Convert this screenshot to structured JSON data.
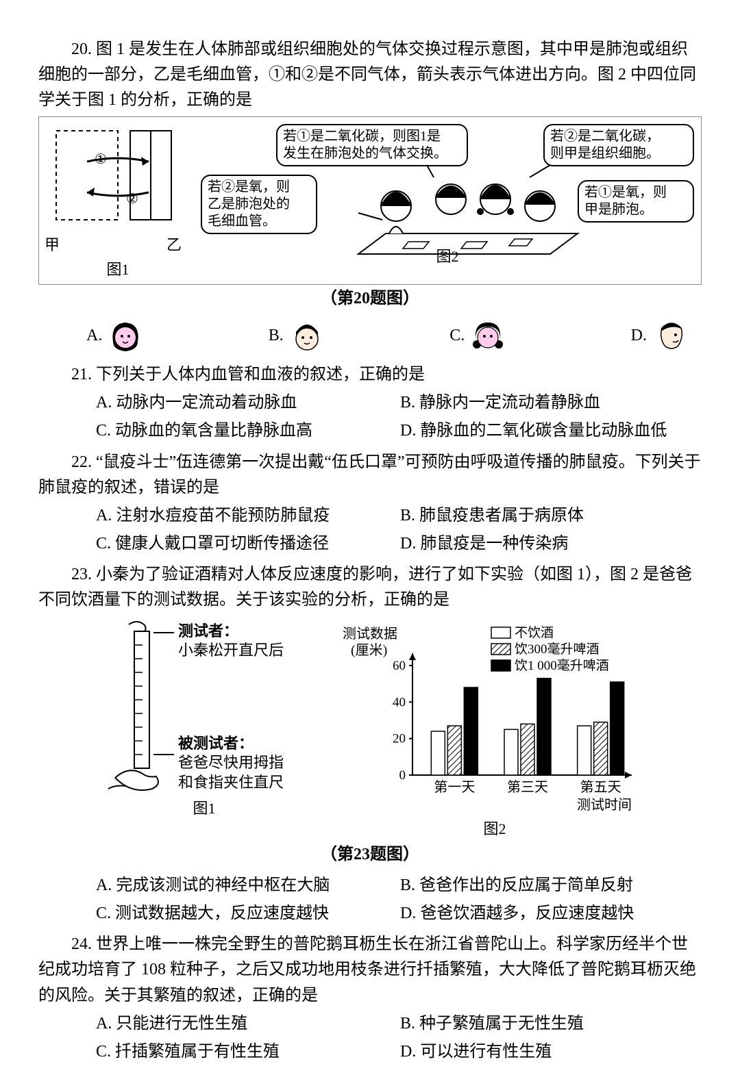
{
  "q20": {
    "num": "20.",
    "stem": "图 1 是发生在人体肺部或组织细胞处的气体交换过程示意图，其中甲是肺泡或组织细胞的一部分，乙是毛细血管，①和②是不同气体，箭头表示气体进出方向。图 2 中四位同学关于图 1 的分析，正确的是",
    "fig1": {
      "label_left": "甲",
      "label_right": "乙",
      "g1": "①",
      "g2": "②",
      "caption": "图1"
    },
    "bubbles": {
      "b1": "若①是二氧化碳，则图1是\n发生在肺泡处的气体交换。",
      "b2": "若②是二氧化碳，\n则甲是组织细胞。",
      "bL": "若②是氧，则\n乙是肺泡处的\n毛细血管。",
      "bR": "若①是氧，则\n甲是肺泡。"
    },
    "fig2_caption": "图2",
    "central_caption": "（第20题图）",
    "opts": {
      "A": "A.",
      "B": "B.",
      "C": "C.",
      "D": "D."
    }
  },
  "q21": {
    "num": "21.",
    "stem": "下列关于人体内血管和血液的叙述，正确的是",
    "opts": {
      "A": "A. 动脉内一定流动着动脉血",
      "B": "B. 静脉内一定流动着静脉血",
      "C": "C. 动脉血的氧含量比静脉血高",
      "D": "D. 静脉血的二氧化碳含量比动脉血低"
    }
  },
  "q22": {
    "num": "22.",
    "stem": "“鼠疫斗士”伍连德第一次提出戴“伍氏口罩”可预防由呼吸道传播的肺鼠疫。下列关于肺鼠疫的叙述，错误的是",
    "opts": {
      "A": "A. 注射水痘疫苗不能预防肺鼠疫",
      "B": "B. 肺鼠疫患者属于病原体",
      "C": "C. 健康人戴口罩可切断传播途径",
      "D": "D. 肺鼠疫是一种传染病"
    }
  },
  "q23": {
    "num": "23.",
    "stem": "小秦为了验证酒精对人体反应速度的影响，进行了如下实验（如图 1），图 2 是爸爸不同饮酒量下的测试数据。关于该实验的分析，正确的是",
    "fig1": {
      "tester_title": "测试者：",
      "tester_line": "小秦松开直尺后",
      "subject_title": "被测试者：",
      "subject_line1": "爸爸尽快用拇指",
      "subject_line2": "和食指夹住直尺",
      "caption": "图1"
    },
    "chart": {
      "type": "bar",
      "y_label": "测试数据\n(厘米)",
      "legend": [
        "不饮酒",
        "饮300毫升啤酒",
        "饮1 000毫升啤酒"
      ],
      "legend_fill": [
        "#ffffff",
        "hatch",
        "#000000"
      ],
      "categories": [
        "第一天",
        "第三天",
        "第五天"
      ],
      "values": [
        [
          24,
          27,
          48
        ],
        [
          25,
          28,
          53
        ],
        [
          27,
          29,
          51
        ]
      ],
      "ylim": [
        0,
        60
      ],
      "yticks": [
        0,
        20,
        40,
        60
      ],
      "x_axis_label": "测试时间",
      "bar_color_border": "#000000",
      "caption": "图2"
    },
    "central_caption": "（第23题图）",
    "opts": {
      "A": "A. 完成该测试的神经中枢在大脑",
      "B": "B. 爸爸作出的反应属于简单反射",
      "C": "C. 测试数据越大，反应速度越快",
      "D": "D. 爸爸饮酒越多，反应速度越快"
    }
  },
  "q24": {
    "num": "24.",
    "stem": "世界上唯一一株完全野生的普陀鹅耳枥生长在浙江省普陀山上。科学家历经半个世纪成功培育了 108 粒种子，之后又成功地用枝条进行扦插繁殖，大大降低了普陀鹅耳枥灭绝的风险。关于其繁殖的叙述，正确的是",
    "opts": {
      "A": "A. 只能进行无性生殖",
      "B": "B. 种子繁殖属于无性生殖",
      "C": "C. 扦插繁殖属于有性生殖",
      "D": "D. 可以进行有性生殖"
    }
  },
  "colors": {
    "text": "#000000",
    "border": "#888888",
    "bg": "#ffffff"
  }
}
